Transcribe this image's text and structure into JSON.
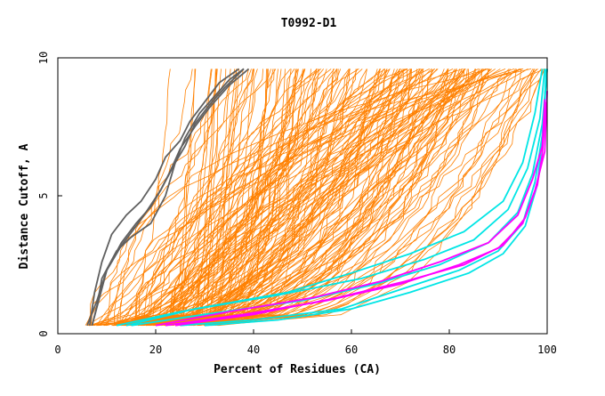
{
  "chart_data": {
    "type": "line",
    "title": "T0992-D1",
    "xlabel": "Percent of Residues (CA)",
    "ylabel": "Distance Cutoff, A",
    "xlim": [
      0,
      100
    ],
    "ylim": [
      0,
      10
    ],
    "xticks": [
      0,
      20,
      40,
      60,
      80,
      100
    ],
    "yticks": [
      0,
      5,
      10
    ],
    "grid": false,
    "colors": {
      "orange": "#ff8000",
      "gray": "#606060",
      "cyan": "#00e5e5",
      "magenta": "#ff00ff"
    },
    "series_groups": [
      {
        "color_key": "gray",
        "curves": [
          {
            "x": [
              6,
              8,
              10,
              13,
              16,
              19,
              21,
              23,
              25,
              28,
              31,
              35,
              39
            ],
            "y": [
              0.3,
              1.2,
              2.3,
              3.3,
              4.0,
              4.6,
              5.2,
              5.9,
              6.7,
              7.5,
              8.2,
              9.0,
              9.6
            ]
          },
          {
            "x": [
              7,
              8,
              9,
              12,
              15,
              19,
              22,
              24,
              26,
              29,
              32,
              35,
              38
            ],
            "y": [
              0.3,
              1.0,
              2.0,
              3.0,
              3.5,
              4.0,
              5.0,
              6.2,
              7.1,
              8.0,
              8.6,
              9.2,
              9.6
            ]
          },
          {
            "x": [
              6.5,
              7.5,
              9,
              11,
              14,
              17,
              20,
              22,
              25,
              27,
              30,
              33,
              37
            ],
            "y": [
              0.3,
              1.5,
              2.6,
              3.6,
              4.3,
              4.8,
              5.6,
              6.4,
              7.0,
              7.7,
              8.4,
              9.1,
              9.6
            ]
          },
          {
            "x": [
              7,
              8.5,
              10,
              13,
              16,
              18,
              21,
              24,
              26,
              28,
              31,
              34,
              38
            ],
            "y": [
              0.3,
              1.3,
              2.3,
              3.2,
              3.9,
              4.4,
              5.2,
              6.2,
              6.8,
              7.6,
              8.3,
              8.9,
              9.6
            ]
          }
        ]
      },
      {
        "color_key": "cyan",
        "curves": [
          {
            "x": [
              12,
              25,
              45,
              62,
              75,
              85,
              92,
              96,
              98.5,
              99.5
            ],
            "y": [
              0.3,
              0.8,
              1.4,
              2.0,
              2.7,
              3.4,
              4.5,
              6.0,
              7.8,
              9.6
            ]
          },
          {
            "x": [
              15,
              30,
              50,
              65,
              78,
              88,
              94,
              97,
              99,
              100
            ],
            "y": [
              0.3,
              0.7,
              1.2,
              1.8,
              2.5,
              3.3,
              4.4,
              5.8,
              7.6,
              9.6
            ]
          },
          {
            "x": [
              25,
              40,
              58,
              70,
              82,
              90,
              95,
              97.5,
              99,
              100
            ],
            "y": [
              0.3,
              0.5,
              0.9,
              1.6,
              2.3,
              3.0,
              4.0,
              5.5,
              7.2,
              9.6
            ]
          },
          {
            "x": [
              30,
              45,
              60,
              72,
              84,
              91,
              95.5,
              98,
              99.2,
              99.8
            ],
            "y": [
              0.3,
              0.5,
              0.9,
              1.5,
              2.2,
              2.9,
              3.9,
              5.4,
              7.4,
              9.6
            ]
          },
          {
            "x": [
              14,
              28,
              47,
              60,
              72,
              83,
              91,
              95,
              97.5,
              99
            ],
            "y": [
              0.3,
              0.9,
              1.5,
              2.2,
              2.9,
              3.7,
              4.8,
              6.2,
              8.0,
              9.6
            ]
          }
        ]
      },
      {
        "color_key": "magenta",
        "curves": [
          {
            "x": [
              20,
              35,
              52,
              66,
              78,
              88,
              94,
              97,
              99,
              99.5
            ],
            "y": [
              0.3,
              0.8,
              1.3,
              1.9,
              2.6,
              3.3,
              4.3,
              5.6,
              6.8,
              8.5
            ]
          },
          {
            "x": [
              22,
              38,
              55,
              70,
              82,
              90,
              95,
              97.5,
              99.5,
              100
            ],
            "y": [
              0.3,
              0.7,
              1.2,
              1.8,
              2.5,
              3.1,
              4.0,
              5.2,
              6.6,
              8.8
            ]
          },
          {
            "x": [
              24,
              40,
              57,
              71,
              83,
              91,
              95.5,
              98,
              99,
              99.8
            ],
            "y": [
              0.3,
              0.7,
              1.3,
              1.9,
              2.5,
              3.2,
              4.2,
              5.4,
              6.5,
              8.4
            ]
          }
        ]
      }
    ]
  }
}
